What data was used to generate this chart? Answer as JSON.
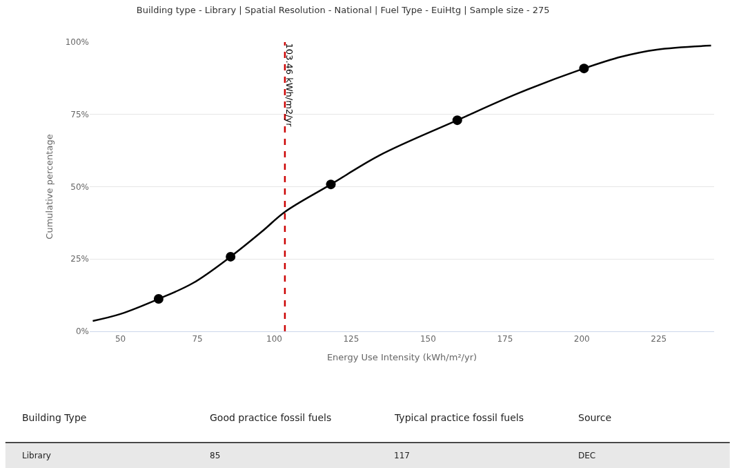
{
  "chart_data": {
    "type": "line",
    "title": "Building type - Library | Spatial Resolution - National | Fuel Type - EuiHtg | Sample size - 275",
    "xlabel": "Energy Use Intensity (kWh/m²/yr)",
    "ylabel": "Cumulative percentage",
    "series": [
      {
        "color": "#000000",
        "marker": "none",
        "x": [
          41,
          50,
          62.4,
          73.6,
          85.8,
          96.1,
          103.46,
          118.4,
          134.3,
          159.5,
          179.3,
          200.7,
          213,
          224.3,
          242
        ],
        "values": [
          3.6,
          6,
          11.2,
          16.7,
          25.8,
          34.6,
          41.3,
          50.8,
          60.9,
          73,
          82.3,
          90.9,
          95,
          97.4,
          98.8
        ]
      },
      {
        "type": "scatter",
        "color": "#000000",
        "marker": "circle",
        "x": [
          62.4,
          85.8,
          118.4,
          159.5,
          200.7
        ],
        "values": [
          11.2,
          25.8,
          50.8,
          73,
          90.9
        ]
      }
    ],
    "xlim": [
      40,
      243
    ],
    "ylim": [
      0,
      100
    ],
    "xticks": [
      50,
      75,
      100,
      125,
      150,
      175,
      200,
      225
    ],
    "yticks": [
      {
        "value": 0,
        "label": "0%"
      },
      {
        "value": 25,
        "label": "25%"
      },
      {
        "value": 50,
        "label": "50%"
      },
      {
        "value": 75,
        "label": "75%"
      },
      {
        "value": 100,
        "label": "100%"
      }
    ],
    "grid": "y",
    "ref_lines": [
      {
        "axis": "x",
        "value": 103.46,
        "label": "103.46 kWh/m2/yr",
        "color": "#cc0000",
        "line_style": "dashed"
      }
    ],
    "annotations": [
      "Building Type",
      "Good practice fossil fuels",
      "Typical practice fossil fuels",
      "Source",
      "Library",
      "85",
      "117",
      "DEC"
    ]
  }
}
